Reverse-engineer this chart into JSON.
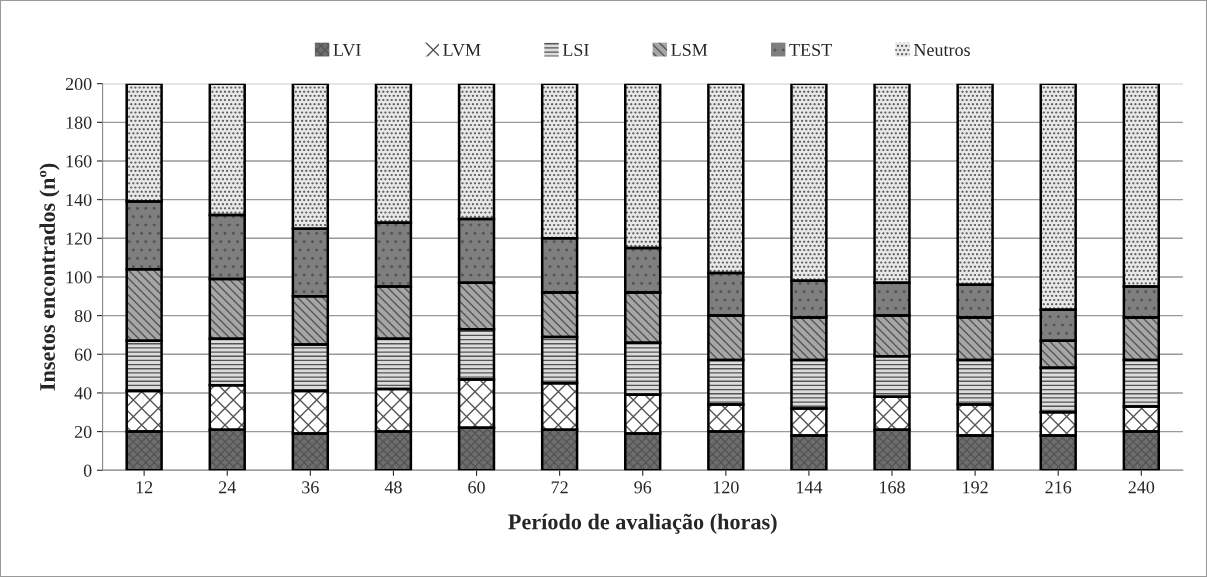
{
  "chart_data": {
    "type": "bar",
    "stacked": true,
    "xlabel": "Período de avaliação (horas)",
    "ylabel": "Insetos encontrados (nº)",
    "categories": [
      "12",
      "24",
      "36",
      "48",
      "60",
      "72",
      "96",
      "120",
      "144",
      "168",
      "192",
      "216",
      "240"
    ],
    "series": [
      {
        "name": "LVI",
        "color": "#6e6e6e",
        "values": [
          20,
          21,
          19,
          20,
          22,
          21,
          19,
          20,
          18,
          21,
          18,
          18,
          20
        ]
      },
      {
        "name": "LVM",
        "color": "#ffffff",
        "values": [
          21,
          23,
          22,
          22,
          25,
          24,
          20,
          14,
          14,
          17,
          16,
          12,
          13
        ]
      },
      {
        "name": "LSI",
        "color": "#dcdcdc",
        "values": [
          26,
          24,
          24,
          26,
          26,
          24,
          27,
          23,
          25,
          21,
          23,
          23,
          24
        ]
      },
      {
        "name": "LSM",
        "color": "#a6a6a6",
        "values": [
          37,
          31,
          25,
          27,
          24,
          23,
          26,
          23,
          22,
          21,
          22,
          14,
          22
        ]
      },
      {
        "name": "TEST",
        "color": "#7f7f7f",
        "values": [
          35,
          33,
          35,
          33,
          33,
          28,
          23,
          22,
          19,
          17,
          17,
          16,
          16
        ]
      },
      {
        "name": "Neutros",
        "color": "#e8e8e8",
        "values": [
          61,
          68,
          75,
          72,
          70,
          80,
          85,
          98,
          102,
          103,
          104,
          117,
          105
        ]
      }
    ],
    "ylim": [
      0,
      200
    ],
    "yticks": [
      0,
      20,
      40,
      60,
      80,
      100,
      120,
      140,
      160,
      180,
      200
    ],
    "grid": "y",
    "legend": "top"
  }
}
